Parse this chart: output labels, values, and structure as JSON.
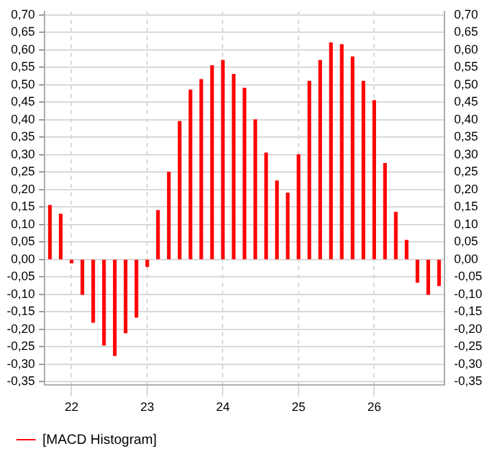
{
  "chart_data": {
    "type": "bar",
    "categories": [
      null,
      null,
      "22",
      null,
      null,
      null,
      null,
      null,
      null,
      "23",
      null,
      null,
      null,
      null,
      null,
      null,
      "24",
      null,
      null,
      null,
      null,
      null,
      null,
      "25",
      null,
      null,
      null,
      null,
      null,
      null,
      "26",
      null,
      null,
      null,
      null,
      null,
      null
    ],
    "series": [
      {
        "name": "[MACD Histogram]",
        "color": "#ff0000",
        "values": [
          0.155,
          0.13,
          -0.01,
          -0.1,
          -0.18,
          -0.245,
          -0.275,
          -0.21,
          -0.165,
          -0.02,
          0.14,
          0.25,
          0.395,
          0.485,
          0.515,
          0.555,
          0.57,
          0.53,
          0.49,
          0.4,
          0.305,
          0.225,
          0.19,
          0.3,
          0.51,
          0.57,
          0.62,
          0.615,
          0.58,
          0.51,
          0.455,
          0.275,
          0.135,
          0.055,
          -0.065,
          -0.1,
          -0.075
        ]
      }
    ],
    "ylim": [
      -0.36,
      0.71
    ],
    "yticks": [
      {
        "value": 0.7,
        "label": "0,70"
      },
      {
        "value": 0.65,
        "label": "0,65"
      },
      {
        "value": 0.6,
        "label": "0,60"
      },
      {
        "value": 0.55,
        "label": "0,55"
      },
      {
        "value": 0.5,
        "label": "0,50"
      },
      {
        "value": 0.45,
        "label": "0,45"
      },
      {
        "value": 0.4,
        "label": "0,40"
      },
      {
        "value": 0.35,
        "label": "0,35"
      },
      {
        "value": 0.3,
        "label": "0,30"
      },
      {
        "value": 0.25,
        "label": "0,25"
      },
      {
        "value": 0.2,
        "label": "0,20"
      },
      {
        "value": 0.15,
        "label": "0,15"
      },
      {
        "value": 0.1,
        "label": "0,10"
      },
      {
        "value": 0.05,
        "label": "0,05"
      },
      {
        "value": 0,
        "label": "0,00"
      },
      {
        "value": -0.05,
        "label": "-0,05"
      },
      {
        "value": -0.1,
        "label": "-0,10"
      },
      {
        "value": -0.15,
        "label": "-0,15"
      },
      {
        "value": -0.2,
        "label": "-0,20"
      },
      {
        "value": -0.25,
        "label": "-0,25"
      },
      {
        "value": -0.3,
        "label": "-0,30"
      },
      {
        "value": -0.35,
        "label": "-0,35"
      }
    ],
    "y2lim": [
      -0.36,
      0.71
    ],
    "y2ticks": [
      {
        "value": 0.7,
        "label": "0,70"
      },
      {
        "value": 0.65,
        "label": "0,65"
      },
      {
        "value": 0.6,
        "label": "0,60"
      },
      {
        "value": 0.55,
        "label": "0,55"
      },
      {
        "value": 0.5,
        "label": "0,50"
      },
      {
        "value": 0.45,
        "label": "0,45"
      },
      {
        "value": 0.4,
        "label": "0,40"
      },
      {
        "value": 0.35,
        "label": "0,35"
      },
      {
        "value": 0.3,
        "label": "0,30"
      },
      {
        "value": 0.25,
        "label": "0,25"
      },
      {
        "value": 0.2,
        "label": "0,20"
      },
      {
        "value": 0.15,
        "label": "0,15"
      },
      {
        "value": 0.1,
        "label": "0,10"
      },
      {
        "value": 0.05,
        "label": "0,05"
      },
      {
        "value": 0,
        "label": "0,00"
      },
      {
        "value": -0.05,
        "label": "-0,05"
      },
      {
        "value": -0.1,
        "label": "-0,10"
      },
      {
        "value": -0.15,
        "label": "-0,15"
      },
      {
        "value": -0.2,
        "label": "-0,20"
      },
      {
        "value": -0.25,
        "label": "-0,25"
      },
      {
        "value": -0.3,
        "label": "-0,30"
      },
      {
        "value": -0.35,
        "label": "-0,35"
      }
    ],
    "grid": true,
    "legend": "bottom"
  }
}
